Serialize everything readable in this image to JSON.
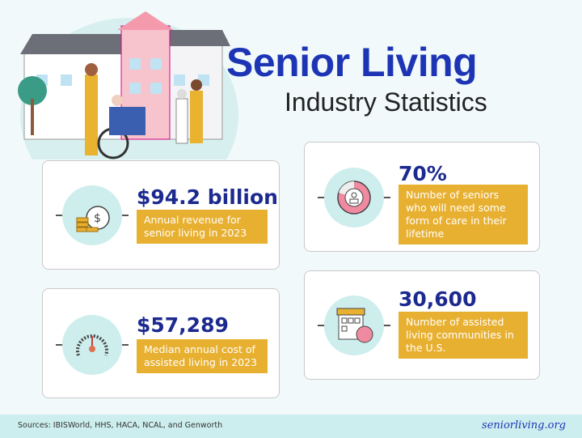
{
  "header": {
    "title": "Senior Living",
    "subtitle": "Industry Statistics"
  },
  "stats": [
    {
      "value": "$94.2 billion",
      "description": "Annual revenue for senior living in 2023",
      "icon": "money-bag-coins-icon"
    },
    {
      "value": "70%",
      "description": "Number of seniors who will need some form of care in their lifetime",
      "icon": "pie-senior-icon",
      "fill_percent": 70
    },
    {
      "value": "$57,289",
      "description": "Median annual cost of assisted living in 2023",
      "icon": "gauge-icon"
    },
    {
      "value": "30,600",
      "description": "Number of assisted living communities in the U.S.",
      "icon": "building-icon"
    }
  ],
  "footer": {
    "sources": "Sources: IBISWorld, HHS, HACA, NCAL, and Genworth",
    "logo": "seniorliving.org"
  },
  "colors": {
    "title": "#1d35b5",
    "value": "#1c2a90",
    "accent": "#e8b030",
    "circle": "#cdeeed",
    "pink": "#f08aa0"
  }
}
